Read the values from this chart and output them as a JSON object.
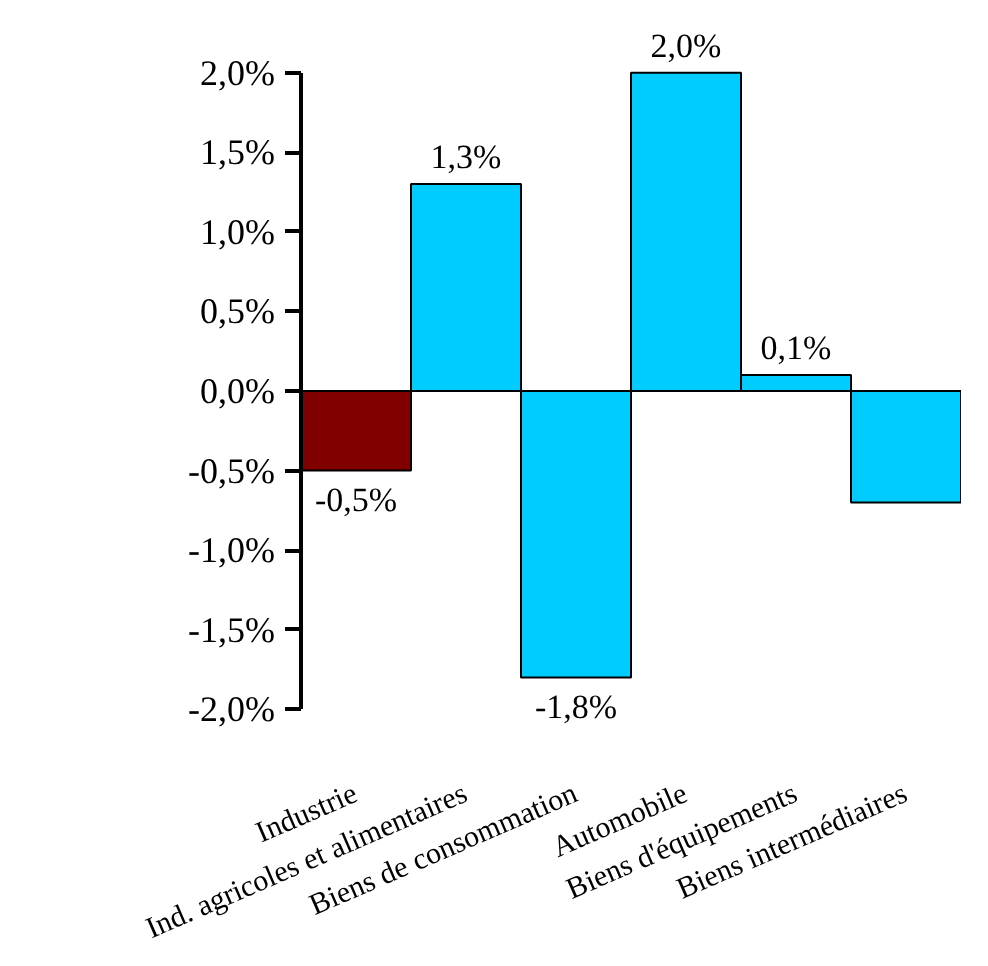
{
  "chart_data": {
    "type": "bar",
    "categories": [
      "Industrie",
      "Ind. agricoles et alimentaires",
      "Biens de consommation",
      "Automobile",
      "Biens d'équipements",
      "Biens intermédiaires"
    ],
    "values": [
      -0.5,
      1.3,
      -1.8,
      2.0,
      0.1,
      -0.7
    ],
    "colors": [
      "#800000",
      "#00ccff",
      "#00ccff",
      "#00ccff",
      "#00ccff",
      "#00ccff"
    ],
    "value_labels": [
      "-0,5%",
      "1,3%",
      "-1,8%",
      "2,0%",
      "0,1%",
      null
    ],
    "ylim": [
      -2,
      2
    ],
    "yticks": [
      {
        "value": -2,
        "label": "-2,0%"
      },
      {
        "value": -1.5,
        "label": "-1,5%"
      },
      {
        "value": -1,
        "label": "-1,0%"
      },
      {
        "value": -0.5,
        "label": "-0,5%"
      },
      {
        "value": 0,
        "label": "0,0%"
      },
      {
        "value": 0.5,
        "label": "0,5%"
      },
      {
        "value": 1,
        "label": "1,0%"
      },
      {
        "value": 1.5,
        "label": "1,5%"
      },
      {
        "value": 2,
        "label": "2,0%"
      }
    ]
  }
}
